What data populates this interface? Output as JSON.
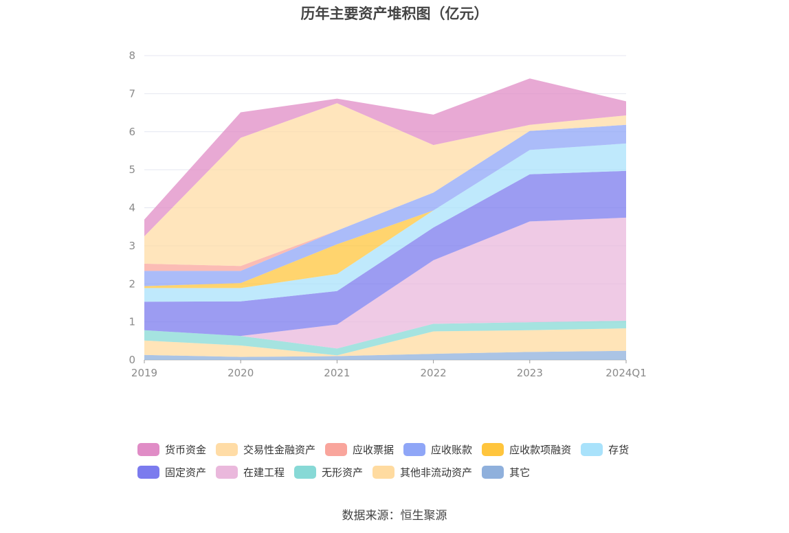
{
  "title": "历年主要资产堆积图（亿元）",
  "source": "数据来源：恒生聚源",
  "chart_data": {
    "type": "area",
    "stacked": true,
    "categories": [
      "2019",
      "2020",
      "2021",
      "2022",
      "2023",
      "2024Q1"
    ],
    "ylim": [
      0,
      8
    ],
    "yticks": [
      0,
      1,
      2,
      3,
      4,
      5,
      6,
      7,
      8
    ],
    "grid": true,
    "legend_position": "bottom",
    "series": [
      {
        "name": "其它",
        "color": "#8fb0dc",
        "values": [
          0.13,
          0.08,
          0.1,
          0.16,
          0.21,
          0.24
        ]
      },
      {
        "name": "其他非流动资产",
        "color": "#ffdba0",
        "values": [
          0.38,
          0.3,
          0.02,
          0.59,
          0.57,
          0.59
        ]
      },
      {
        "name": "无形资产",
        "color": "#87d9d6",
        "values": [
          0.27,
          0.25,
          0.18,
          0.2,
          0.21,
          0.2
        ]
      },
      {
        "name": "在建工程",
        "color": "#eab8dc",
        "values": [
          0.0,
          0.0,
          0.63,
          1.67,
          2.65,
          2.71
        ]
      },
      {
        "name": "固定资产",
        "color": "#7b7bee",
        "values": [
          0.75,
          0.91,
          0.88,
          0.86,
          1.24,
          1.23
        ]
      },
      {
        "name": "存货",
        "color": "#a9e2fb",
        "values": [
          0.36,
          0.35,
          0.45,
          0.45,
          0.64,
          0.72
        ]
      },
      {
        "name": "应收款项融资",
        "color": "#ffc53d",
        "values": [
          0.05,
          0.13,
          0.78,
          0.0,
          0.0,
          0.0
        ]
      },
      {
        "name": "应收账款",
        "color": "#8fa6f7",
        "values": [
          0.4,
          0.32,
          0.36,
          0.47,
          0.5,
          0.49
        ]
      },
      {
        "name": "应收票据",
        "color": "#f9a59c",
        "values": [
          0.19,
          0.13,
          0.0,
          0.0,
          0.0,
          0.0
        ]
      },
      {
        "name": "交易性金融资产",
        "color": "#ffdca6",
        "values": [
          0.72,
          3.37,
          3.35,
          1.25,
          0.16,
          0.25
        ]
      },
      {
        "name": "货币资金",
        "color": "#e08cc6",
        "values": [
          0.44,
          0.67,
          0.12,
          0.8,
          1.22,
          0.37
        ]
      }
    ]
  },
  "legend": {
    "rows": [
      [
        {
          "label": "货币资金",
          "color": "#e08cc6"
        },
        {
          "label": "交易性金融资产",
          "color": "#ffdca6"
        },
        {
          "label": "应收票据",
          "color": "#f9a59c"
        },
        {
          "label": "应收账款",
          "color": "#8fa6f7"
        },
        {
          "label": "应收款项融资",
          "color": "#ffc53d"
        },
        {
          "label": "存货",
          "color": "#a9e2fb"
        }
      ],
      [
        {
          "label": "固定资产",
          "color": "#7b7bee"
        },
        {
          "label": "在建工程",
          "color": "#eab8dc"
        },
        {
          "label": "无形资产",
          "color": "#87d9d6"
        },
        {
          "label": "其他非流动资产",
          "color": "#ffdba0"
        },
        {
          "label": "其它",
          "color": "#8fb0dc"
        }
      ]
    ]
  }
}
